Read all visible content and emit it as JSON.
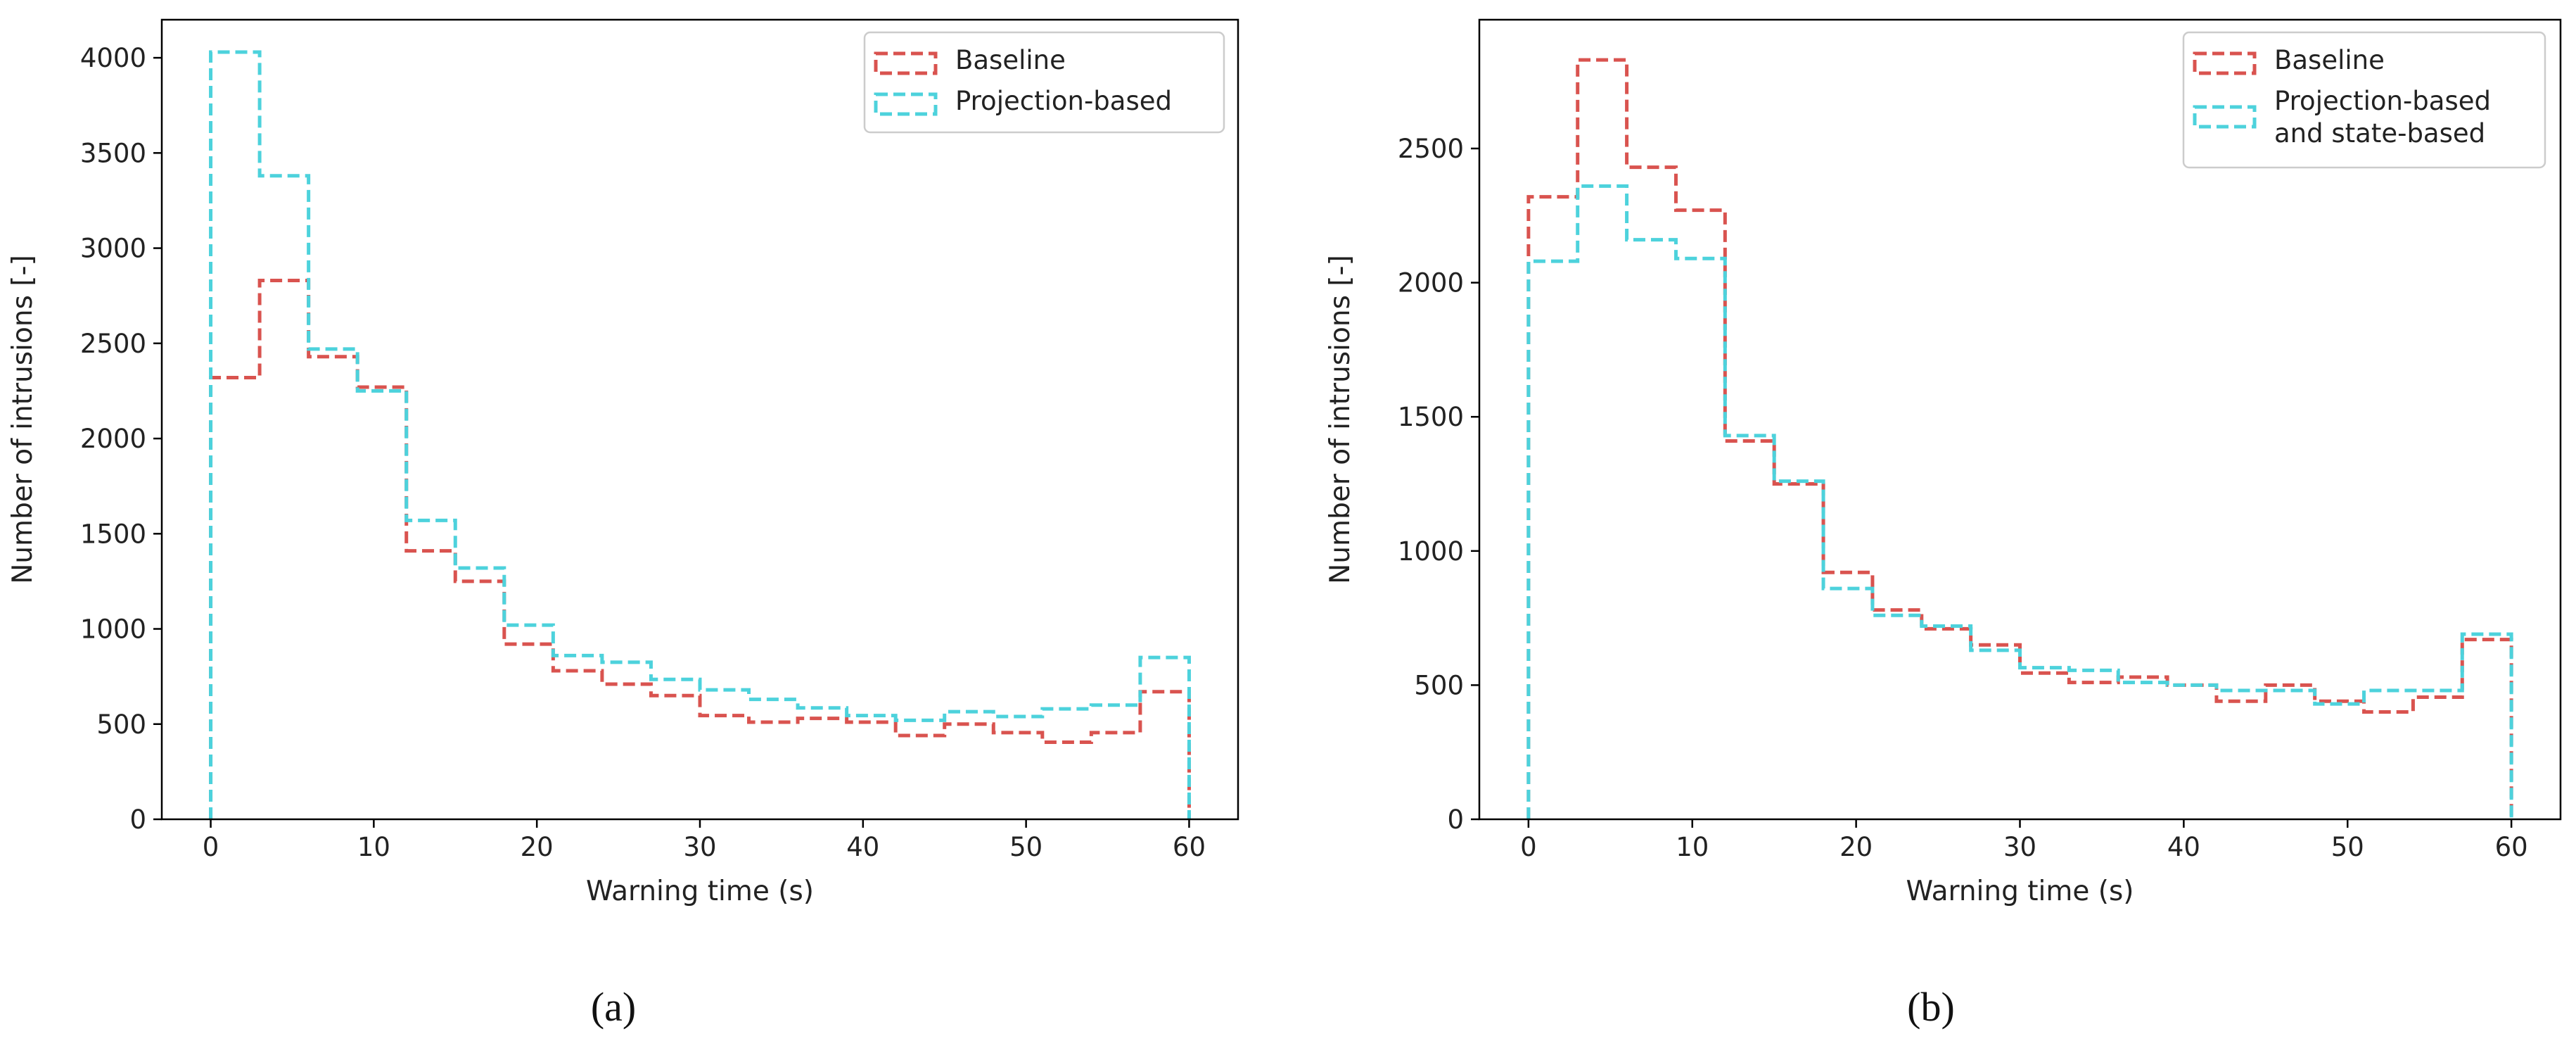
{
  "colors": {
    "baseline": "#d9534f",
    "projection": "#4dd2dc"
  },
  "chart_data": [
    {
      "id": "a",
      "type": "histogram-step",
      "caption": "(a)",
      "xlabel": "Warning time (s)",
      "ylabel": "Number of intrusions [-]",
      "xlim": [
        -3,
        63
      ],
      "ylim": [
        0,
        4200
      ],
      "xticks": [
        0,
        10,
        20,
        30,
        40,
        50,
        60
      ],
      "yticks": [
        0,
        500,
        1000,
        1500,
        2000,
        2500,
        3000,
        3500,
        4000
      ],
      "bin_edges": [
        0,
        3,
        6,
        9,
        12,
        15,
        18,
        21,
        24,
        27,
        30,
        33,
        36,
        39,
        42,
        45,
        48,
        51,
        54,
        57,
        60
      ],
      "legend_position": "top-right",
      "series": [
        {
          "name": "Baseline",
          "color_key": "baseline",
          "values": [
            2320,
            2830,
            2430,
            2270,
            1410,
            1250,
            920,
            780,
            710,
            650,
            545,
            510,
            530,
            510,
            440,
            500,
            455,
            405,
            455,
            670
          ]
        },
        {
          "name": "Projection-based",
          "color_key": "projection",
          "values": [
            4030,
            3380,
            2470,
            2250,
            1570,
            1320,
            1020,
            860,
            825,
            735,
            680,
            630,
            585,
            545,
            520,
            565,
            540,
            580,
            600,
            850
          ]
        }
      ]
    },
    {
      "id": "b",
      "type": "histogram-step",
      "caption": "(b)",
      "xlabel": "Warning time (s)",
      "ylabel": "Number of intrusions [-]",
      "xlim": [
        -3,
        63
      ],
      "ylim": [
        0,
        2980
      ],
      "xticks": [
        0,
        10,
        20,
        30,
        40,
        50,
        60
      ],
      "yticks": [
        0,
        500,
        1000,
        1500,
        2000,
        2500
      ],
      "bin_edges": [
        0,
        3,
        6,
        9,
        12,
        15,
        18,
        21,
        24,
        27,
        30,
        33,
        36,
        39,
        42,
        45,
        48,
        51,
        54,
        57,
        60
      ],
      "legend_position": "top-right",
      "series": [
        {
          "name": "Baseline",
          "color_key": "baseline",
          "values": [
            2320,
            2830,
            2430,
            2270,
            1410,
            1250,
            920,
            780,
            710,
            650,
            545,
            510,
            530,
            500,
            440,
            500,
            440,
            400,
            455,
            670
          ]
        },
        {
          "name": "Projection-based\nand state-based",
          "color_key": "projection",
          "values": [
            2080,
            2360,
            2160,
            2090,
            1430,
            1260,
            860,
            760,
            720,
            630,
            565,
            555,
            510,
            500,
            480,
            480,
            430,
            480,
            480,
            690
          ]
        }
      ]
    }
  ]
}
